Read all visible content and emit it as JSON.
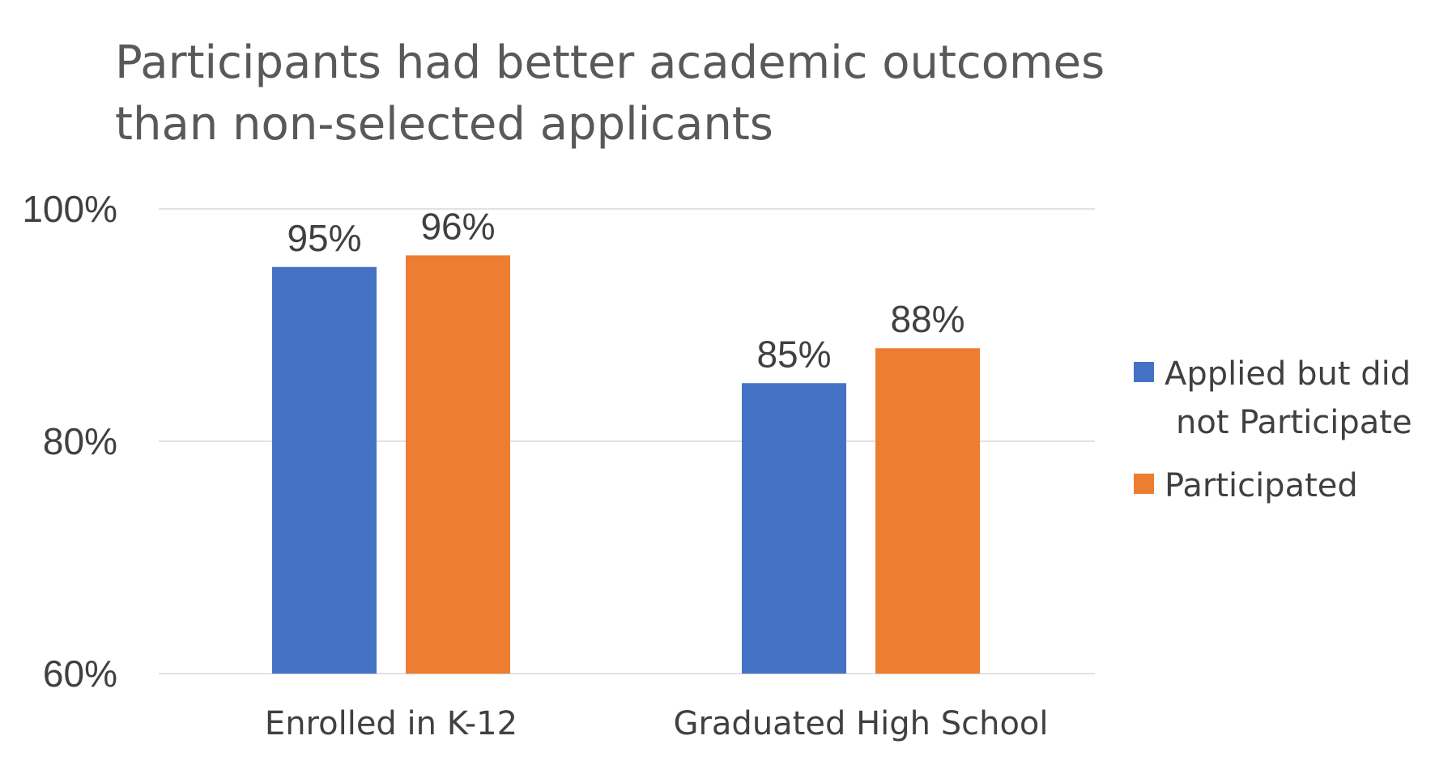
{
  "chart_data": {
    "type": "bar",
    "title_lines": [
      "Participants had better academic outcomes",
      "than non-selected applicants"
    ],
    "categories": [
      "Enrolled in K-12",
      "Graduated High School"
    ],
    "series": [
      {
        "name": "Applied but did not Participate",
        "name_lines": [
          "Applied but did",
          "not Participate"
        ],
        "color": "#4472C4",
        "values": [
          95,
          85
        ],
        "labels": [
          "95%",
          "85%"
        ]
      },
      {
        "name": "Participated",
        "name_lines": [
          "Participated"
        ],
        "color": "#ED7D31",
        "values": [
          96,
          88
        ],
        "labels": [
          "96%",
          "88%"
        ]
      }
    ],
    "ylim": [
      60,
      100
    ],
    "yticks": [
      60,
      80,
      100
    ],
    "ytick_labels": [
      "60%",
      "80%",
      "100%"
    ],
    "grid": true,
    "legend": "right",
    "grid_color": "#D9D9D9",
    "text_color": "#404040",
    "title_color": "#595959"
  }
}
